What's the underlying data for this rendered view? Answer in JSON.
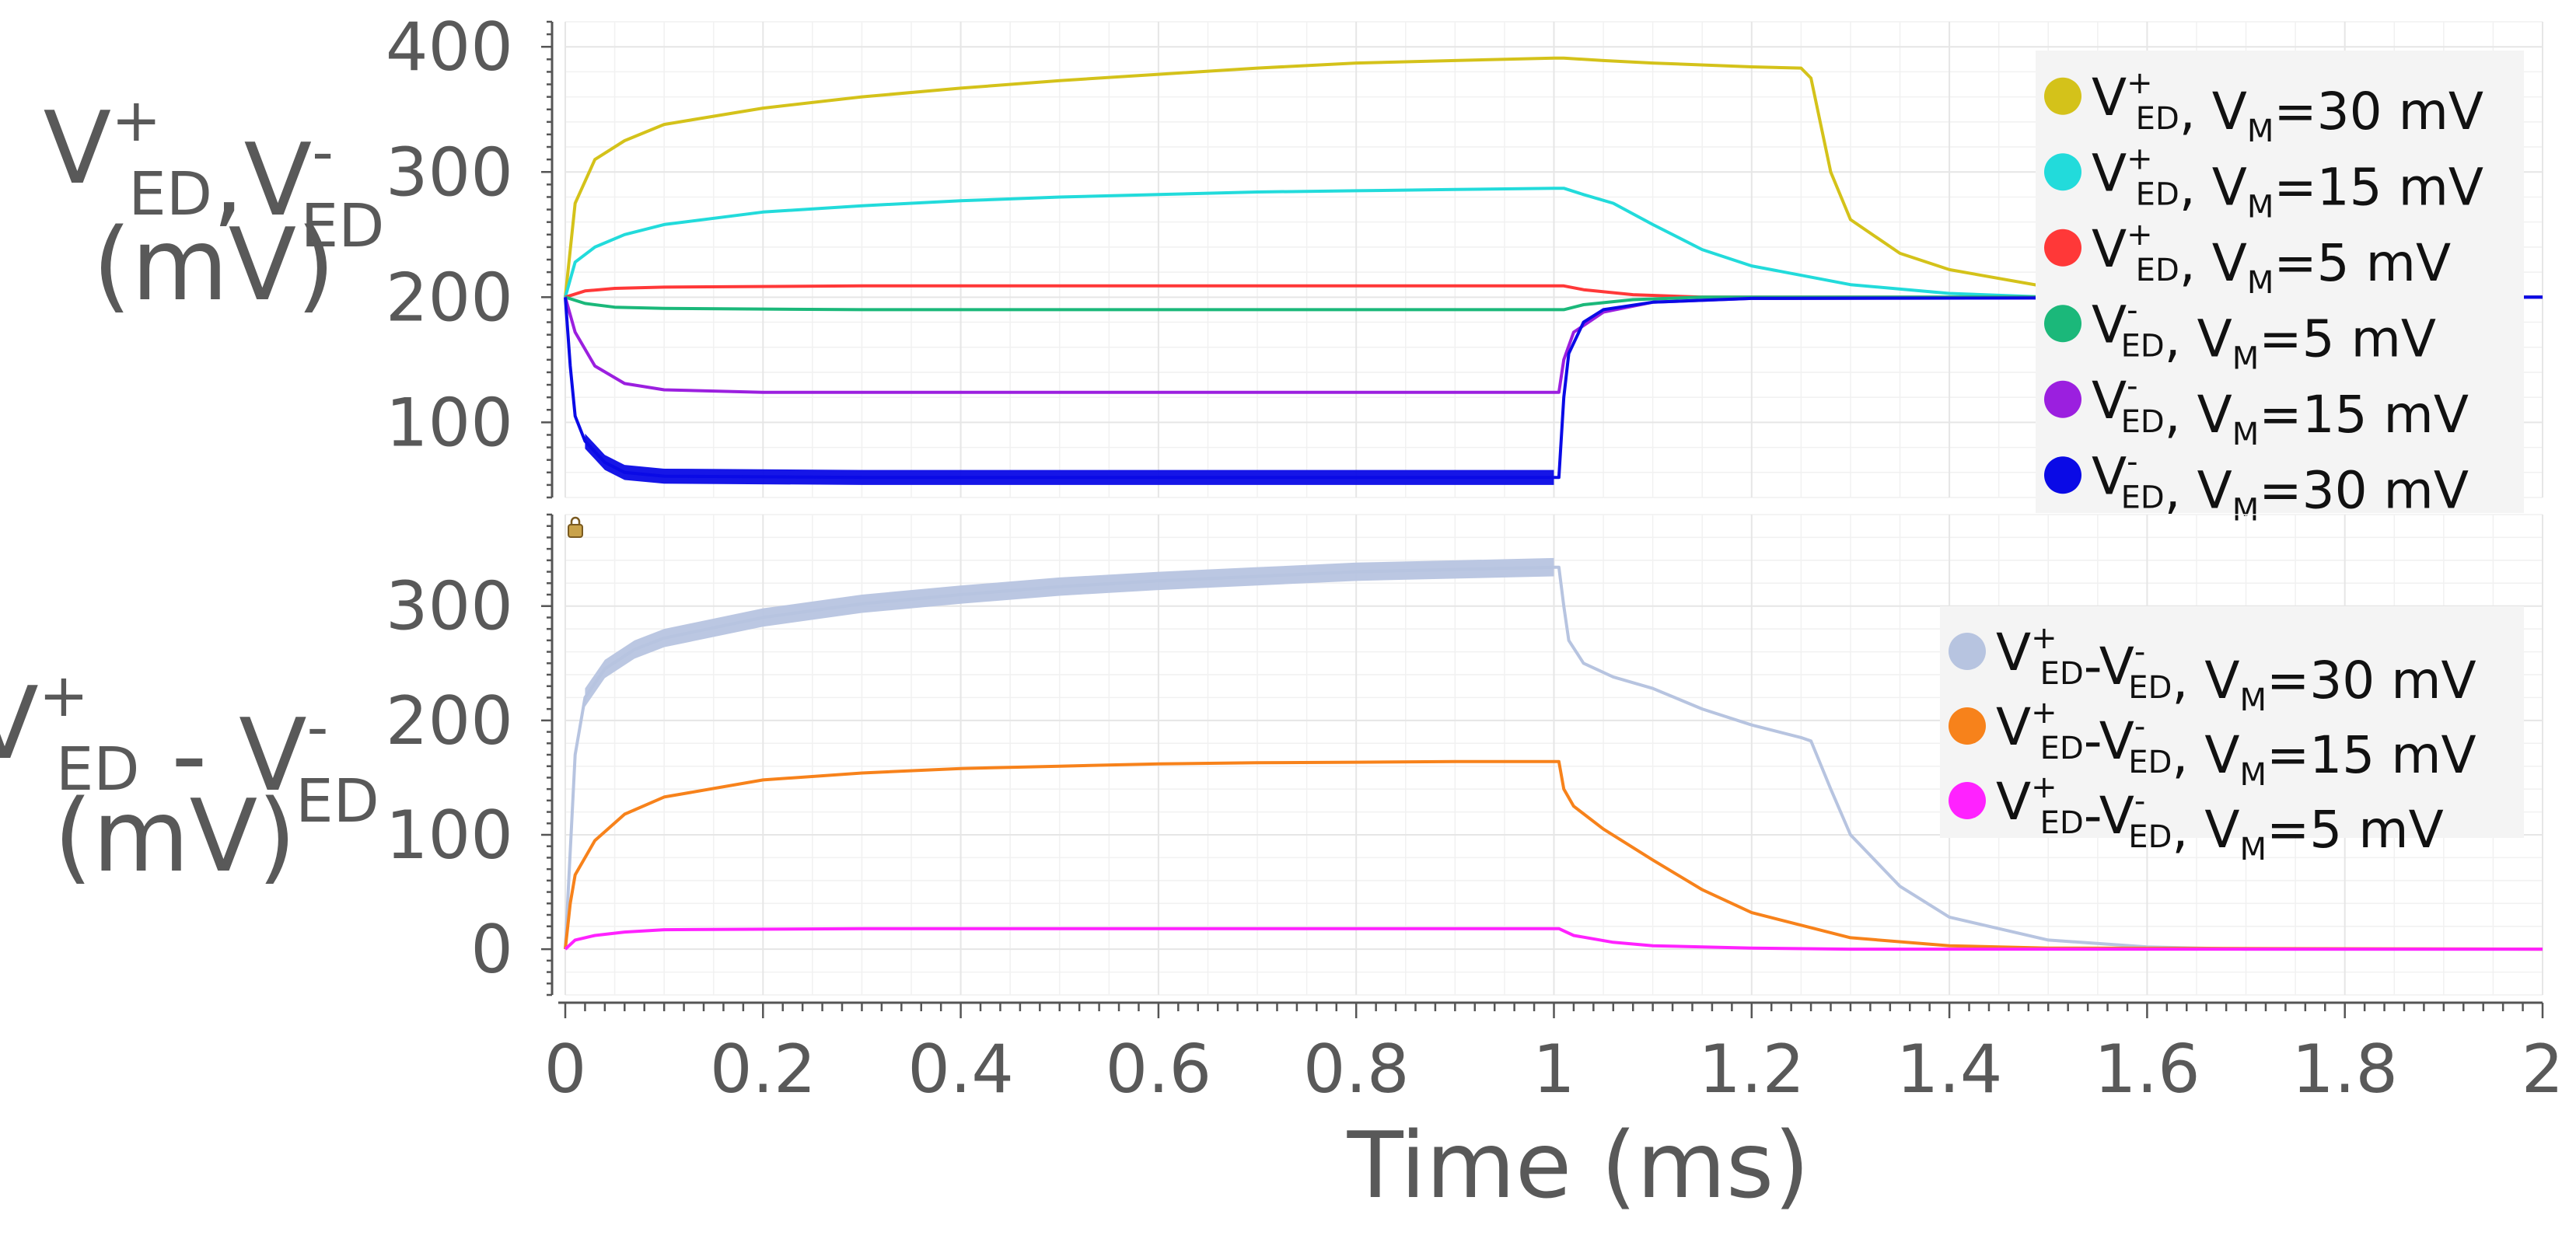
{
  "chart_data": [
    {
      "type": "line",
      "panel": "top",
      "ylabel": {
        "line1": [
          {
            "t": "V",
            "sup": "+",
            "sub": "ED"
          },
          {
            "t": ","
          },
          {
            "t": "V",
            "sup": "-",
            "sub": "ED"
          }
        ],
        "line2": "(mV)"
      },
      "ylim": [
        40,
        420
      ],
      "yticks": [
        100,
        200,
        300,
        400
      ],
      "xlim": [
        0,
        2
      ],
      "series": [
        {
          "name": "V+ED, VM=30 mV",
          "color": "#d4c21a",
          "width": 4,
          "points": [
            [
              0,
              200
            ],
            [
              0.01,
              275
            ],
            [
              0.03,
              310
            ],
            [
              0.06,
              325
            ],
            [
              0.1,
              338
            ],
            [
              0.2,
              351
            ],
            [
              0.3,
              360
            ],
            [
              0.4,
              367
            ],
            [
              0.5,
              373
            ],
            [
              0.6,
              378
            ],
            [
              0.7,
              383
            ],
            [
              0.8,
              387
            ],
            [
              0.9,
              389
            ],
            [
              1.0,
              391
            ],
            [
              1.01,
              391
            ],
            [
              1.05,
              389
            ],
            [
              1.1,
              387
            ],
            [
              1.2,
              384
            ],
            [
              1.25,
              383
            ],
            [
              1.26,
              375
            ],
            [
              1.28,
              300
            ],
            [
              1.3,
              262
            ],
            [
              1.35,
              235
            ],
            [
              1.4,
              222
            ],
            [
              1.5,
              208
            ],
            [
              1.6,
              203
            ],
            [
              1.8,
              200
            ],
            [
              2.0,
              200
            ]
          ]
        },
        {
          "name": "V+ED, VM=15 mV",
          "color": "#22dbdb",
          "width": 4,
          "points": [
            [
              0,
              200
            ],
            [
              0.01,
              228
            ],
            [
              0.03,
              240
            ],
            [
              0.06,
              250
            ],
            [
              0.1,
              258
            ],
            [
              0.2,
              268
            ],
            [
              0.3,
              273
            ],
            [
              0.4,
              277
            ],
            [
              0.5,
              280
            ],
            [
              0.6,
              282
            ],
            [
              0.7,
              284
            ],
            [
              0.8,
              285
            ],
            [
              0.9,
              286
            ],
            [
              1.0,
              287
            ],
            [
              1.01,
              287
            ],
            [
              1.03,
              282
            ],
            [
              1.06,
              275
            ],
            [
              1.1,
              258
            ],
            [
              1.15,
              238
            ],
            [
              1.2,
              225
            ],
            [
              1.3,
              210
            ],
            [
              1.4,
              203
            ],
            [
              1.5,
              200
            ],
            [
              2.0,
              200
            ]
          ]
        },
        {
          "name": "V+ED, VM=5 mV",
          "color": "#ff3838",
          "width": 4,
          "points": [
            [
              0,
              200
            ],
            [
              0.02,
              205
            ],
            [
              0.05,
              207
            ],
            [
              0.1,
              208
            ],
            [
              0.3,
              209
            ],
            [
              0.6,
              209
            ],
            [
              1.0,
              209
            ],
            [
              1.01,
              209
            ],
            [
              1.03,
              206
            ],
            [
              1.08,
              202
            ],
            [
              1.15,
              200
            ],
            [
              2.0,
              200
            ]
          ]
        },
        {
          "name": "V-ED, VM=5 mV",
          "color": "#1bb87a",
          "width": 4,
          "points": [
            [
              0,
              200
            ],
            [
              0.02,
              195
            ],
            [
              0.05,
              192
            ],
            [
              0.1,
              191
            ],
            [
              0.3,
              190
            ],
            [
              1.0,
              190
            ],
            [
              1.01,
              190
            ],
            [
              1.03,
              194
            ],
            [
              1.08,
              198
            ],
            [
              1.15,
              200
            ],
            [
              2.0,
              200
            ]
          ]
        },
        {
          "name": "V-ED, VM=15 mV",
          "color": "#9b1fdf",
          "width": 4,
          "points": [
            [
              0,
              200
            ],
            [
              0.01,
              172
            ],
            [
              0.03,
              145
            ],
            [
              0.06,
              131
            ],
            [
              0.1,
              126
            ],
            [
              0.2,
              124
            ],
            [
              1.0,
              124
            ],
            [
              1.005,
              124
            ],
            [
              1.01,
              150
            ],
            [
              1.02,
              172
            ],
            [
              1.05,
              188
            ],
            [
              1.1,
              196
            ],
            [
              1.2,
              199
            ],
            [
              2.0,
              200
            ]
          ]
        },
        {
          "name": "V-ED, VM=30 mV",
          "color": "#0a0ae6",
          "width": 4,
          "points": [
            [
              0,
              200
            ],
            [
              0.005,
              145
            ],
            [
              0.01,
              105
            ],
            [
              0.02,
              85
            ],
            [
              0.04,
              68
            ],
            [
              0.06,
              60
            ],
            [
              0.1,
              57
            ],
            [
              0.3,
              56
            ],
            [
              1.0,
              56
            ],
            [
              1.005,
              56
            ],
            [
              1.01,
              120
            ],
            [
              1.015,
              155
            ],
            [
              1.03,
              180
            ],
            [
              1.05,
              190
            ],
            [
              1.1,
              196
            ],
            [
              1.2,
              199
            ],
            [
              2.0,
              200
            ]
          ]
        }
      ],
      "noise_band": {
        "series": "V-ED, VM=30 mV",
        "color": "#0a0ae6",
        "x_from": 0.02,
        "x_to": 1.0,
        "half_width_mV": 6
      },
      "legend": {
        "placement": "top-right",
        "items": [
          {
            "color": "#d4c21a",
            "sign": "+",
            "vm": "30 mV"
          },
          {
            "color": "#22dbdb",
            "sign": "+",
            "vm": "15 mV"
          },
          {
            "color": "#ff3838",
            "sign": "+",
            "vm": "5 mV"
          },
          {
            "color": "#1bb87a",
            "sign": "-",
            "vm": "5 mV"
          },
          {
            "color": "#9b1fdf",
            "sign": "-",
            "vm": "15 mV"
          },
          {
            "color": "#0a0ae6",
            "sign": "-",
            "vm": "30 mV"
          }
        ]
      }
    },
    {
      "type": "line",
      "panel": "bottom",
      "ylabel": {
        "line1": [
          {
            "t": "V",
            "sup": "+",
            "sub": "ED"
          },
          {
            "t": " - "
          },
          {
            "t": "V",
            "sup": "-",
            "sub": "ED"
          }
        ],
        "line2": "(mV)"
      },
      "ylim": [
        -40,
        380
      ],
      "yticks": [
        0,
        100,
        200,
        300
      ],
      "xlim": [
        0,
        2
      ],
      "series": [
        {
          "name": "V+ED-V-ED, VM=30 mV",
          "color": "#b7c4e0",
          "width": 4,
          "points": [
            [
              0,
              0
            ],
            [
              0.01,
              170
            ],
            [
              0.02,
              220
            ],
            [
              0.04,
              245
            ],
            [
              0.07,
              262
            ],
            [
              0.1,
              272
            ],
            [
              0.2,
              290
            ],
            [
              0.3,
              302
            ],
            [
              0.4,
              310
            ],
            [
              0.5,
              317
            ],
            [
              0.6,
              322
            ],
            [
              0.7,
              326
            ],
            [
              0.8,
              330
            ],
            [
              0.9,
              332
            ],
            [
              1.0,
              334
            ],
            [
              1.005,
              334
            ],
            [
              1.01,
              300
            ],
            [
              1.015,
              270
            ],
            [
              1.03,
              250
            ],
            [
              1.06,
              238
            ],
            [
              1.1,
              228
            ],
            [
              1.15,
              210
            ],
            [
              1.2,
              196
            ],
            [
              1.25,
              185
            ],
            [
              1.26,
              182
            ],
            [
              1.28,
              140
            ],
            [
              1.3,
              100
            ],
            [
              1.35,
              55
            ],
            [
              1.4,
              28
            ],
            [
              1.5,
              8
            ],
            [
              1.6,
              2
            ],
            [
              1.7,
              0
            ],
            [
              2.0,
              0
            ]
          ]
        },
        {
          "name": "V+ED-V-ED, VM=15 mV",
          "color": "#f7821b",
          "width": 4,
          "points": [
            [
              0,
              0
            ],
            [
              0.005,
              40
            ],
            [
              0.01,
              65
            ],
            [
              0.03,
              95
            ],
            [
              0.06,
              118
            ],
            [
              0.1,
              133
            ],
            [
              0.2,
              148
            ],
            [
              0.3,
              154
            ],
            [
              0.4,
              158
            ],
            [
              0.5,
              160
            ],
            [
              0.6,
              162
            ],
            [
              0.7,
              163
            ],
            [
              0.8,
              163.5
            ],
            [
              0.9,
              164
            ],
            [
              1.0,
              164
            ],
            [
              1.005,
              164
            ],
            [
              1.01,
              140
            ],
            [
              1.02,
              125
            ],
            [
              1.05,
              105
            ],
            [
              1.1,
              78
            ],
            [
              1.15,
              52
            ],
            [
              1.2,
              32
            ],
            [
              1.3,
              10
            ],
            [
              1.4,
              3
            ],
            [
              1.5,
              1
            ],
            [
              2.0,
              0
            ]
          ]
        },
        {
          "name": "V+ED-V-ED, VM=5 mV",
          "color": "#ff22ff",
          "width": 4,
          "points": [
            [
              0,
              0
            ],
            [
              0.01,
              8
            ],
            [
              0.03,
              12
            ],
            [
              0.06,
              15
            ],
            [
              0.1,
              17
            ],
            [
              0.3,
              18
            ],
            [
              1.0,
              18
            ],
            [
              1.005,
              18
            ],
            [
              1.02,
              12
            ],
            [
              1.06,
              6
            ],
            [
              1.1,
              3
            ],
            [
              1.2,
              1
            ],
            [
              1.3,
              0
            ],
            [
              2.0,
              0
            ]
          ]
        }
      ],
      "noise_band": {
        "series": "V+ED-V-ED, VM=30 mV",
        "color": "#b7c4e0",
        "x_from": 0.02,
        "x_to": 1.0,
        "half_width_mV": 8
      },
      "legend": {
        "placement": "top-right",
        "items": [
          {
            "color": "#b7c4e0",
            "vm": "30 mV"
          },
          {
            "color": "#f7821b",
            "vm": "15 mV"
          },
          {
            "color": "#ff22ff",
            "vm": "5 mV"
          }
        ]
      }
    }
  ],
  "x_axis": {
    "label": "Time (ms)",
    "ticks": [
      {
        "v": 0,
        "label": "0"
      },
      {
        "v": 0.2,
        "label": "0.2"
      },
      {
        "v": 0.4,
        "label": "0.4"
      },
      {
        "v": 0.6,
        "label": "0.6"
      },
      {
        "v": 0.8,
        "label": "0.8"
      },
      {
        "v": 1.0,
        "label": "1"
      },
      {
        "v": 1.2,
        "label": "1.2"
      },
      {
        "v": 1.4,
        "label": "1.4"
      },
      {
        "v": 1.6,
        "label": "1.6"
      },
      {
        "v": 1.8,
        "label": "1.8"
      },
      {
        "v": 2.0,
        "label": "2"
      }
    ]
  },
  "legend_vm_prefix": "V",
  "legend_vm_sub": "M",
  "lock_icon": "lock-icon",
  "colors": {
    "grid": "#e6e6e6",
    "grid_minor": "#f1f1f1",
    "axis": "#555555",
    "text": "#595959",
    "legend_bg": "#f4f4f4"
  }
}
